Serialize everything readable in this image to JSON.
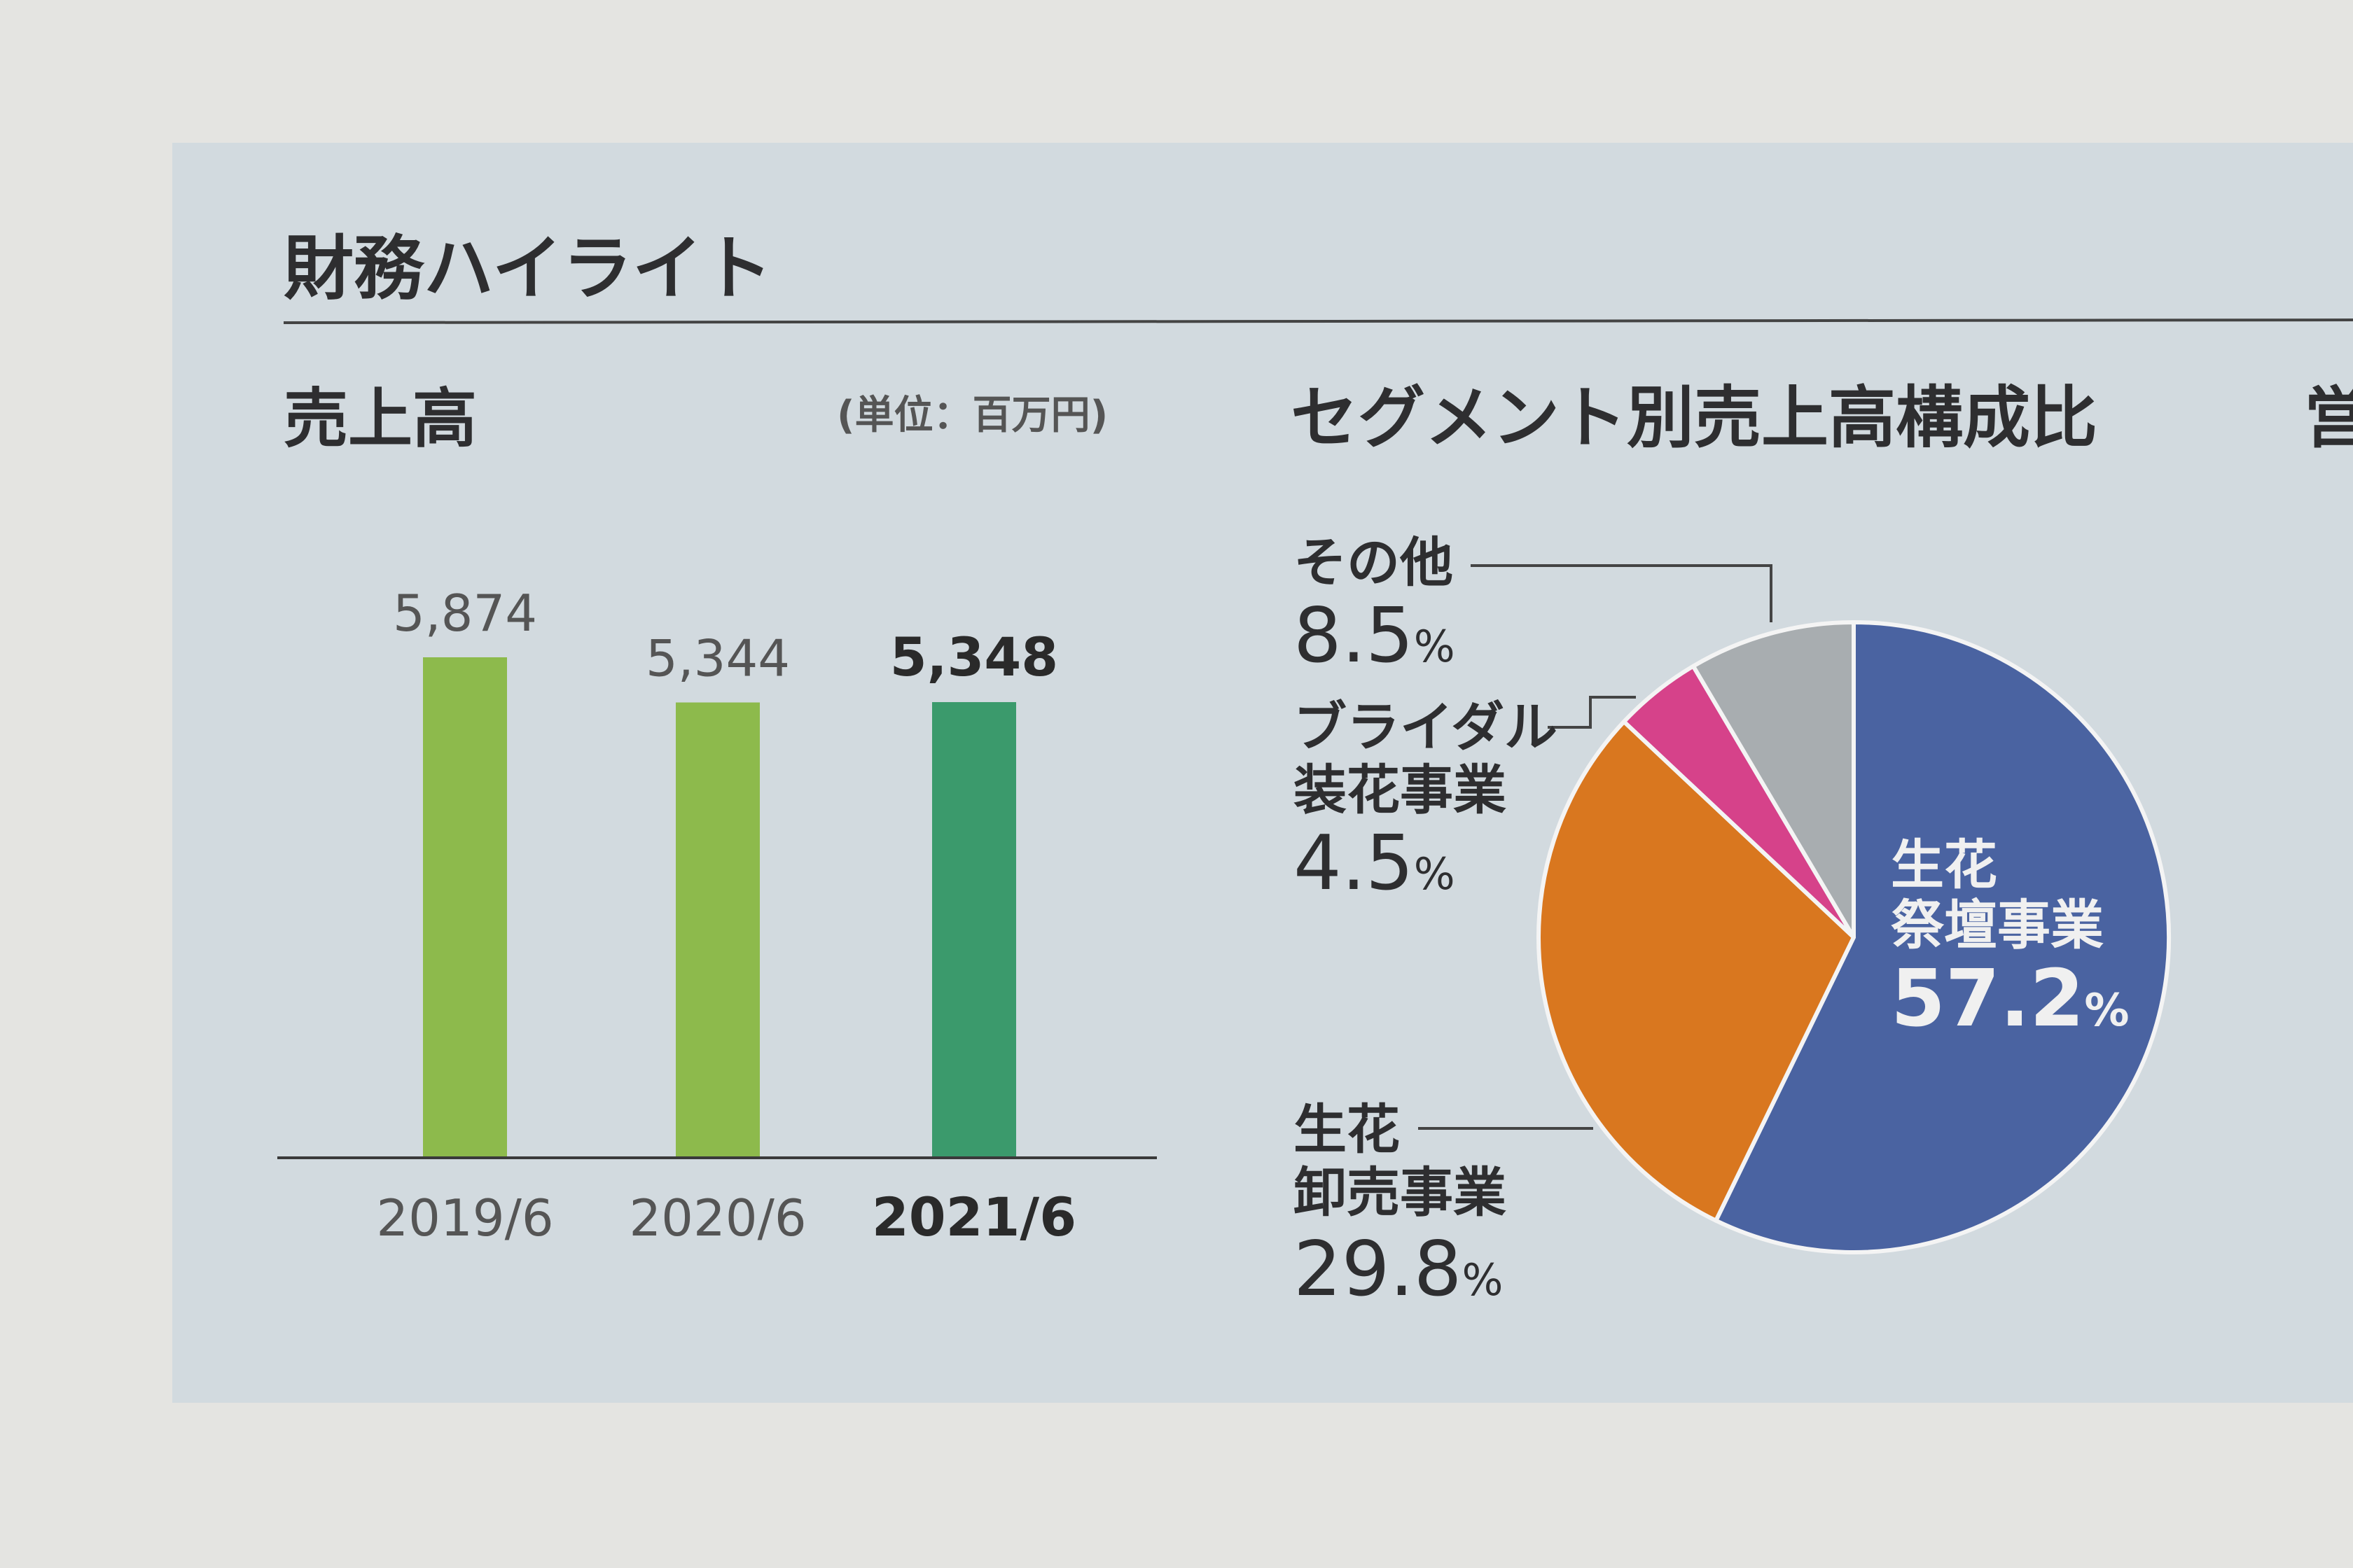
{
  "section_title": "財務ハイライト",
  "next_section_partial": "営",
  "colors": {
    "page": "#e4e4e1",
    "panel": "#d2dadf",
    "bar_past": "#8dba4c",
    "bar_current": "#3b9a6c",
    "text": "#2e2e30"
  },
  "chart_data": [
    {
      "type": "bar",
      "title": "売上高",
      "unit_note": "(単位：百万円)",
      "categories": [
        "2019/6",
        "2020/6",
        "2021/6"
      ],
      "values": [
        5874,
        5344,
        5348
      ],
      "value_labels": [
        "5,874",
        "5,344",
        "5,348"
      ],
      "highlight_index": 2,
      "ylim": [
        0,
        5874
      ],
      "grid": false
    },
    {
      "type": "pie",
      "title": "セグメント別売上高構成比",
      "start": "12 o'clock, clockwise",
      "slices": [
        {
          "label_lines": [
            "生花",
            "祭壇事業"
          ],
          "value": 57.2,
          "value_text": "57.2",
          "color": "#4a63a1"
        },
        {
          "label_lines": [
            "生花",
            "卸売事業"
          ],
          "value": 29.8,
          "value_text": "29.8",
          "color": "#d9771f"
        },
        {
          "label_lines": [
            "ブライダル",
            "装花事業"
          ],
          "value": 4.5,
          "value_text": "4.5",
          "color": "#d6428a"
        },
        {
          "label_lines": [
            "その他"
          ],
          "value": 8.5,
          "value_text": "8.5",
          "color": "#a8adb0"
        }
      ],
      "percent_sign": "%"
    }
  ]
}
